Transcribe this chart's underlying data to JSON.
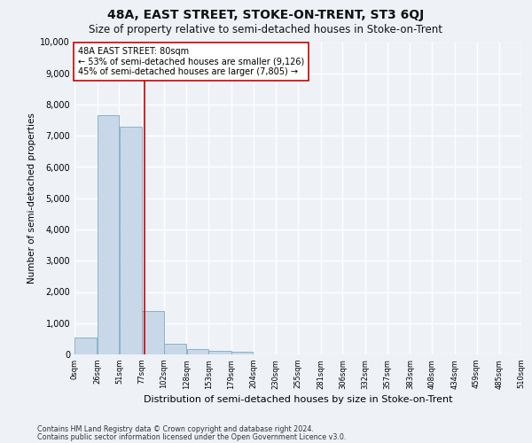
{
  "title": "48A, EAST STREET, STOKE-ON-TRENT, ST3 6QJ",
  "subtitle": "Size of property relative to semi-detached houses in Stoke-on-Trent",
  "xlabel": "Distribution of semi-detached houses by size in Stoke-on-Trent",
  "ylabel": "Number of semi-detached properties",
  "footer_line1": "Contains HM Land Registry data © Crown copyright and database right 2024.",
  "footer_line2": "Contains public sector information licensed under the Open Government Licence v3.0.",
  "bar_edges": [
    0,
    26,
    51,
    77,
    102,
    128,
    153,
    179,
    204,
    230,
    255,
    281,
    306,
    332,
    357,
    383,
    408,
    434,
    459,
    485,
    510
  ],
  "bar_heights": [
    550,
    7650,
    7300,
    1380,
    330,
    160,
    110,
    90,
    0,
    0,
    0,
    0,
    0,
    0,
    0,
    0,
    0,
    0,
    0,
    0
  ],
  "bar_color": "#c8d8e8",
  "bar_edgecolor": "#7baac8",
  "property_size": 80,
  "vline_color": "#cc0000",
  "annotation_text": "48A EAST STREET: 80sqm\n← 53% of semi-detached houses are smaller (9,126)\n45% of semi-detached houses are larger (7,805) →",
  "annotation_box_edgecolor": "#cc0000",
  "annotation_box_facecolor": "#ffffff",
  "ylim": [
    0,
    10000
  ],
  "yticks": [
    0,
    1000,
    2000,
    3000,
    4000,
    5000,
    6000,
    7000,
    8000,
    9000,
    10000
  ],
  "tick_labels": [
    "0sqm",
    "26sqm",
    "51sqm",
    "77sqm",
    "102sqm",
    "128sqm",
    "153sqm",
    "179sqm",
    "204sqm",
    "230sqm",
    "255sqm",
    "281sqm",
    "306sqm",
    "332sqm",
    "357sqm",
    "383sqm",
    "408sqm",
    "434sqm",
    "459sqm",
    "485sqm",
    "510sqm"
  ],
  "background_color": "#eef2f7",
  "grid_color": "#ffffff",
  "title_fontsize": 10,
  "subtitle_fontsize": 8.5,
  "xlabel_fontsize": 8,
  "ylabel_fontsize": 7.5,
  "annotation_fontsize": 7,
  "tick_fontsize": 6,
  "ytick_fontsize": 7
}
